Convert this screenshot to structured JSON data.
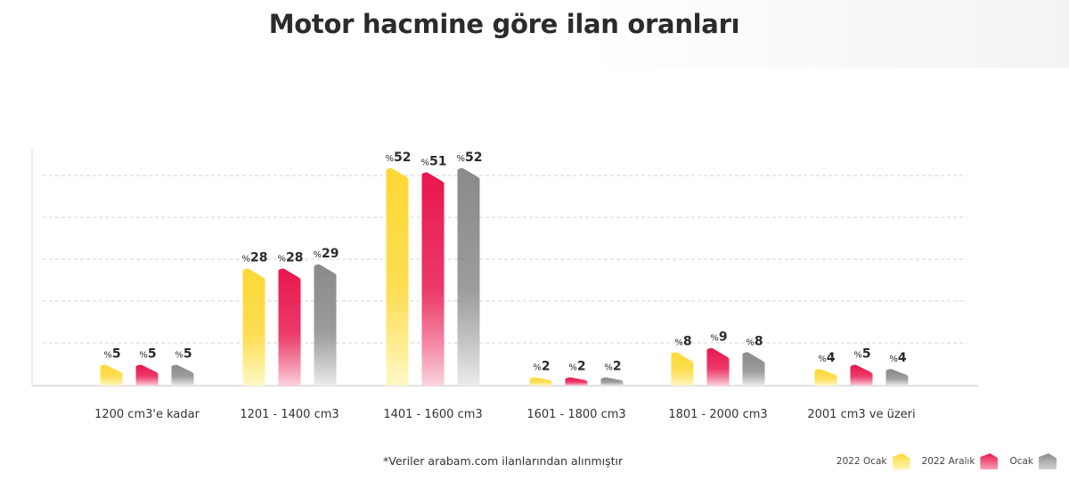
{
  "chart_data": {
    "type": "bar",
    "title": "Motor hacmine göre ilan oranları",
    "value_prefix": "%",
    "categories": [
      "1200 cm3'e kadar",
      "1201 - 1400 cm3",
      "1401 - 1600 cm3",
      "1601 - 1800 cm3",
      "1801 - 2000 cm3",
      "2001 cm3 ve üzeri"
    ],
    "series": [
      {
        "name": "2022 Ocak",
        "color": "#fdd835",
        "values": [
          5,
          28,
          52,
          2,
          8,
          4
        ]
      },
      {
        "name": "2022 Aralık",
        "color": "#e8174e",
        "values": [
          5,
          28,
          51,
          2,
          9,
          5
        ]
      },
      {
        "name": "Ocak",
        "color": "#8a8a8a",
        "values": [
          5,
          29,
          52,
          2,
          8,
          4
        ]
      }
    ],
    "ylim": [
      0,
      56
    ],
    "grid": true,
    "legend_position": "bottom-right",
    "footnote": "*Veriler arabam.com ilanlarından alınmıştır"
  }
}
